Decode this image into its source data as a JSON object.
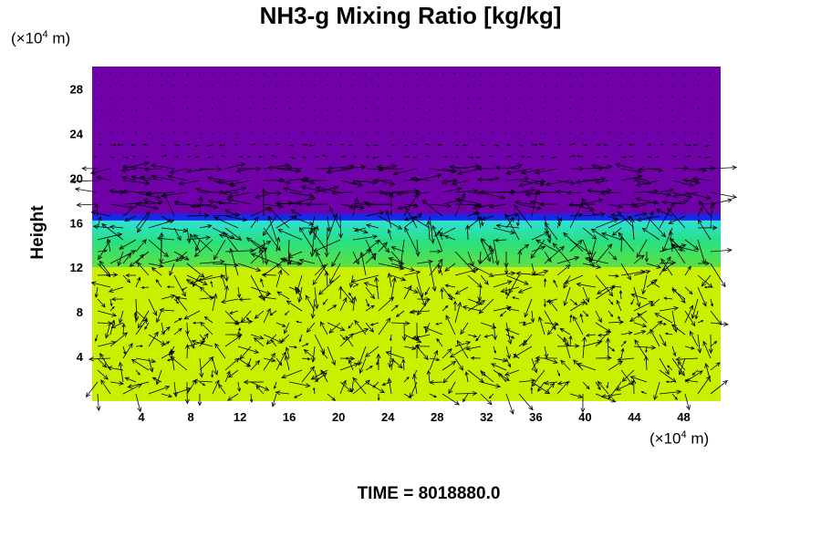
{
  "chart_data": {
    "type": "heatmap",
    "title": "NH3-g Mixing Ratio [kg/kg]",
    "ylabel": "Height",
    "x_unit_prefix": "(×10",
    "x_unit_exp": "4",
    "x_unit_suffix": " m)",
    "y_unit_prefix": "(×10",
    "y_unit_exp": "4",
    "y_unit_suffix": " m)",
    "xlim": [
      0,
      51
    ],
    "ylim": [
      0,
      30
    ],
    "x_ticks": [
      4,
      8,
      12,
      16,
      20,
      24,
      28,
      32,
      36,
      40,
      44,
      48
    ],
    "y_ticks": [
      4,
      8,
      12,
      16,
      20,
      24,
      28
    ],
    "field_layers": [
      {
        "name": "upper",
        "y_from": 16.5,
        "y_to": 30,
        "color": "#7000a8"
      },
      {
        "name": "transition",
        "y_from": 15.8,
        "y_to": 16.8,
        "color": "#1828e8"
      },
      {
        "name": "middle",
        "y_from": 12.0,
        "y_to": 16.2,
        "color": "#28e080"
      },
      {
        "name": "lower",
        "y_from": 0,
        "y_to": 12.0,
        "color": "#c8f000"
      }
    ],
    "vector_field": "wind arrows overlaid",
    "time_text": "TIME = 8018880.0"
  }
}
